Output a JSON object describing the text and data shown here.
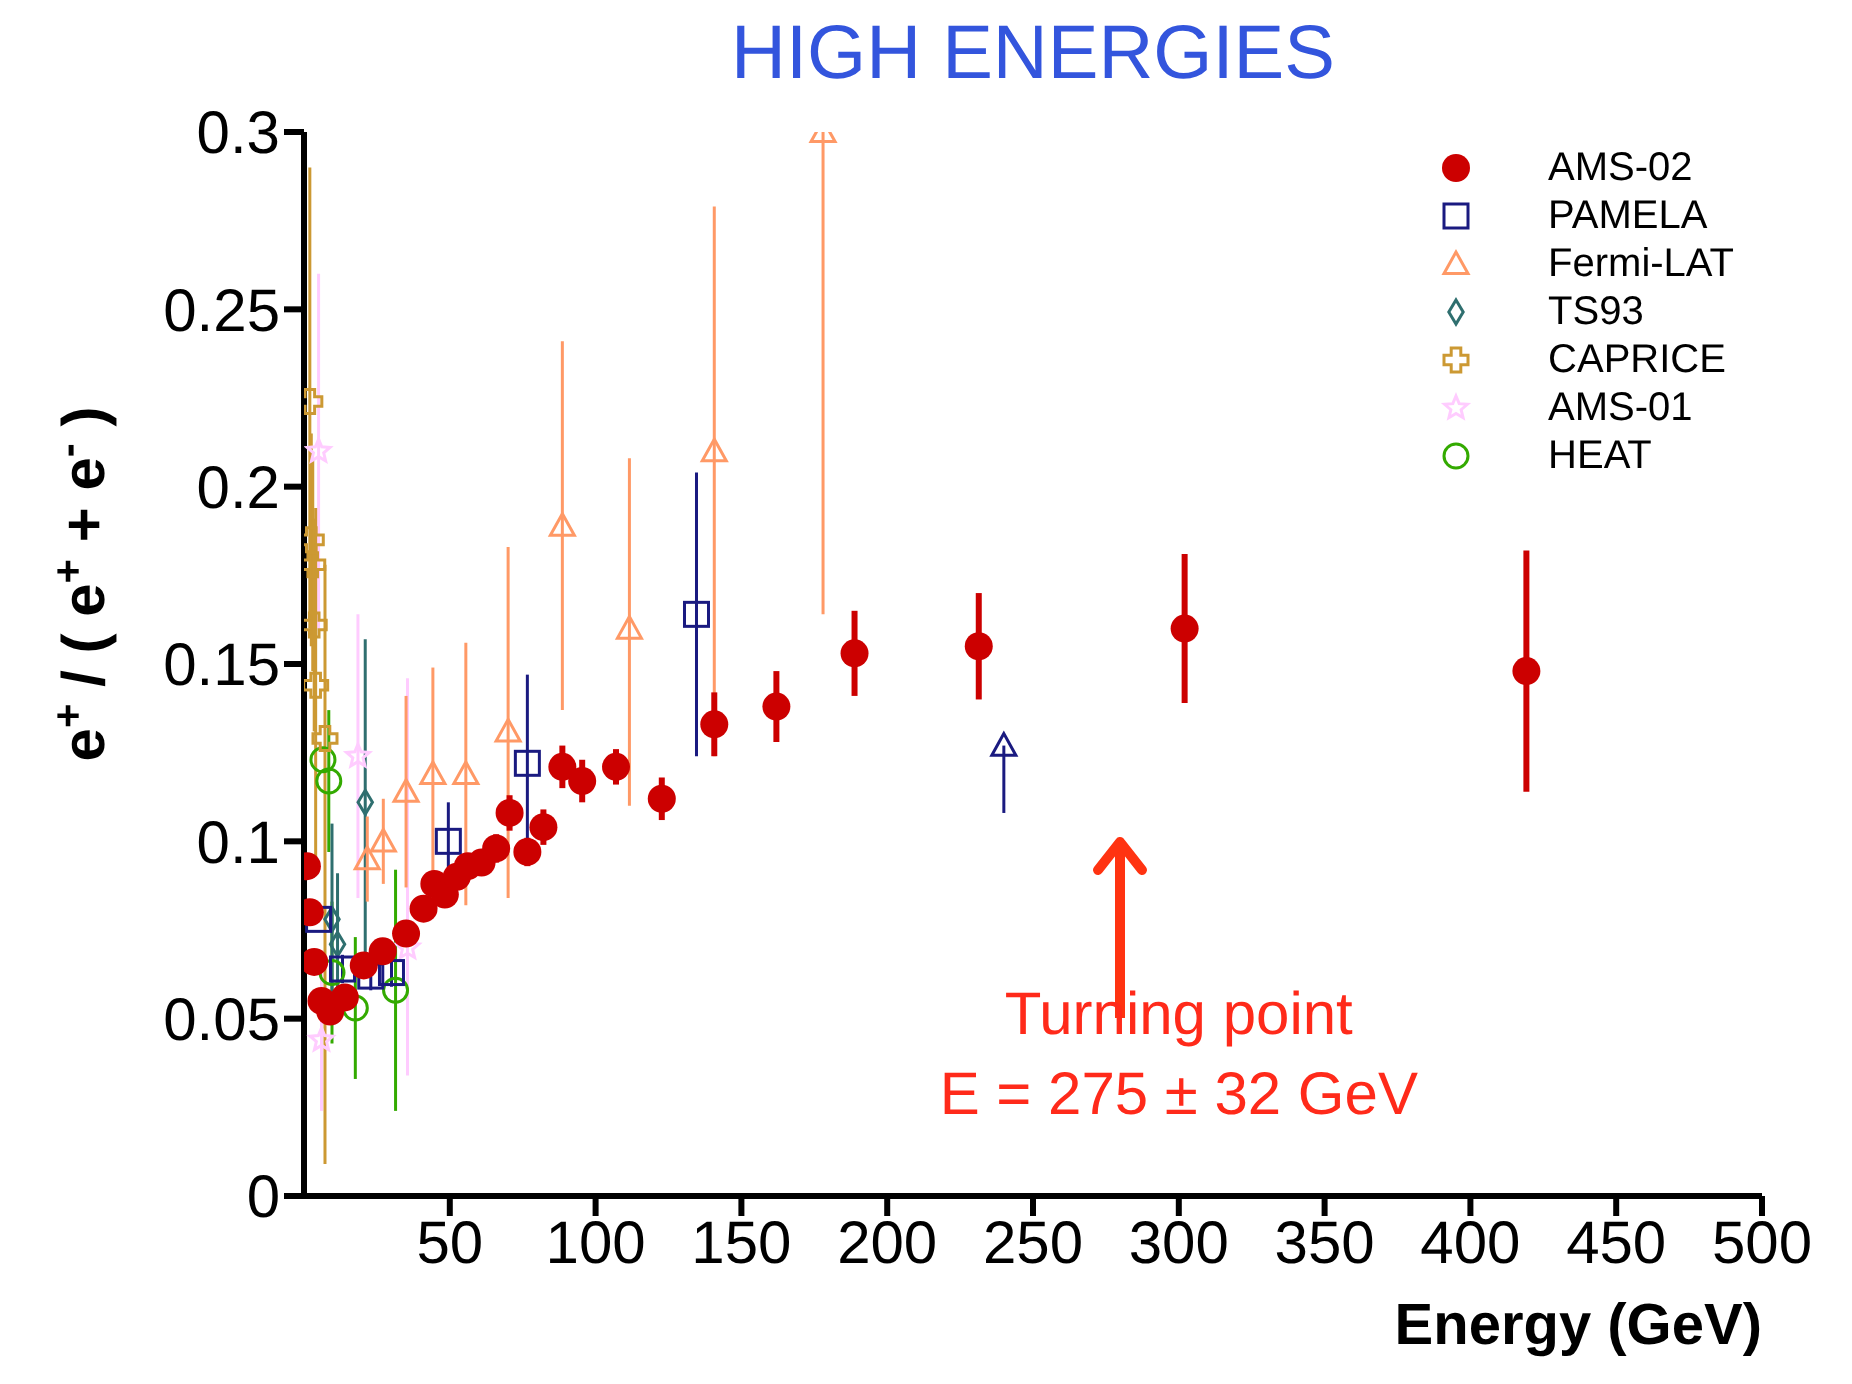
{
  "chart_data": {
    "type": "scatter",
    "title": "HIGH ENERGIES",
    "xlabel": "Energy (GeV)",
    "ylabel": "e$^{+}$ / ( e$^{+}$ + e$^{-}$ )",
    "xlim": [
      0,
      500
    ],
    "ylim": [
      0,
      0.3
    ],
    "xticks": [
      50,
      100,
      150,
      200,
      250,
      300,
      350,
      400,
      450,
      500
    ],
    "yticks": [
      0,
      0.05,
      0.1,
      0.15,
      0.2,
      0.25,
      0.3
    ],
    "grid": false,
    "legend": "top right",
    "annotations": [
      "Turning point",
      "E = 275 ± 32 GeV"
    ],
    "series": [
      {
        "name": "AMS-02",
        "color": "#cc0000",
        "marker": "circle",
        "x": [
          1,
          2,
          3.5,
          6,
          9,
          14,
          20.5,
          27,
          35,
          41,
          44.7,
          48.3,
          52.4,
          56.2,
          60.9,
          65.9,
          70.5,
          76.6,
          82.1,
          88.6,
          95.4,
          107,
          122.7,
          140.7,
          162,
          188.8,
          231.4,
          302,
          419.2
        ],
        "values": [
          0.093,
          0.08,
          0.066,
          0.055,
          0.052,
          0.056,
          0.065,
          0.069,
          0.074,
          0.081,
          0.088,
          0.085,
          0.09,
          0.093,
          0.094,
          0.098,
          0.108,
          0.097,
          0.104,
          0.121,
          0.117,
          0.121,
          0.112,
          0.133,
          0.138,
          0.153,
          0.155,
          0.16,
          0.148
        ],
        "errors": [
          null,
          null,
          null,
          null,
          null,
          null,
          null,
          null,
          null,
          null,
          0.003,
          0.003,
          0.003,
          0.003,
          0.003,
          0.004,
          0.005,
          0.004,
          0.005,
          0.006,
          0.006,
          0.005,
          0.006,
          0.009,
          0.01,
          0.012,
          0.015,
          0.021,
          0.034
        ]
      },
      {
        "name": "PAMELA",
        "color": "#1a1a80",
        "marker": "square",
        "x": [
          5,
          13.2,
          22.9,
          30,
          49.5,
          76.6,
          134.6
        ],
        "values": [
          0.078,
          0.064,
          0.062,
          0.063,
          0.1,
          0.122,
          0.164
        ],
        "errors": [
          null,
          0.004,
          0.004,
          0.004,
          0.011,
          0.025,
          0.04
        ]
      },
      {
        "color": "#1a1a80",
        "marker": "triangle",
        "x": [
          240
        ],
        "values": [
          0.127
        ],
        "errors": [
          [
            0.108,
            0.127
          ]
        ]
      },
      {
        "name": "Fermi-LAT",
        "color": "#ff9966",
        "marker": "triangle",
        "x": [
          21.7,
          27.2,
          35,
          44.2,
          55.5,
          70,
          88.6,
          111.6,
          140.7,
          178
        ],
        "values": [
          0.095,
          0.1,
          0.114,
          0.119,
          0.119,
          0.131,
          0.189,
          0.16,
          0.21,
          0.3
        ],
        "errors": [
          0.012,
          0.012,
          0.027,
          0.03,
          0.037,
          [
            0.084,
            0.183
          ],
          [
            0.137,
            0.241
          ],
          [
            0.11,
            0.208
          ],
          [
            0.124,
            0.279
          ],
          [
            0.164,
            0.3
          ]
        ]
      },
      {
        "name": "TS93",
        "color": "#2f6f6f",
        "marker": "diamond",
        "x": [
          11.5,
          9.6,
          21
        ],
        "values": [
          0.071,
          0.078,
          0.111
        ],
        "errors": [
          0.02,
          0.027,
          0.046
        ]
      },
      {
        "name": "CAPRICE",
        "color": "#cc9933",
        "marker": "cross",
        "x": [
          2,
          2.5,
          3,
          3.5,
          4,
          7.2
        ],
        "values": [
          0.224,
          0.185,
          0.178,
          0.161,
          0.144,
          0.129
        ],
        "errors": [
          [
            0.16,
            0.29
          ],
          0.03,
          0.03,
          0.03,
          0.05,
          [
            0.009,
            0.178
          ]
        ]
      },
      {
        "name": "AMS-01",
        "color": "#ffccff",
        "marker": "star",
        "x": [
          5,
          6,
          18.5,
          35.5
        ],
        "values": [
          0.21,
          0.044,
          0.124,
          0.07
        ],
        "errors": [
          0.05,
          0.02,
          0.04,
          [
            0.034,
            0.146
          ]
        ]
      },
      {
        "name": "HEAT",
        "color": "#33aa00",
        "marker": "circle_open",
        "x": [
          6.5,
          8.5,
          9.6,
          17.6,
          31.4
        ],
        "values": [
          0.123,
          0.117,
          0.063,
          0.053,
          0.058
        ],
        "errors": [
          null,
          0.02,
          0.02,
          0.02,
          0.034
        ]
      }
    ]
  }
}
